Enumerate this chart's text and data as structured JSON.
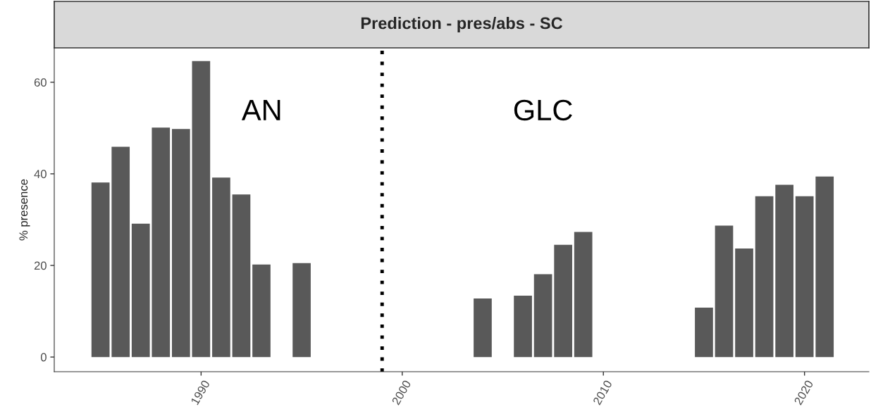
{
  "chart_data": {
    "type": "bar",
    "title": "Prediction - pres/abs - SC",
    "ylabel": "% presence",
    "x": [
      1985,
      1986,
      1987,
      1988,
      1989,
      1990,
      1991,
      1992,
      1993,
      1995,
      2004,
      2006,
      2007,
      2008,
      2009,
      2015,
      2016,
      2017,
      2018,
      2019,
      2020,
      2021
    ],
    "values": [
      38.1,
      45.9,
      29.1,
      50.1,
      49.8,
      64.6,
      39.2,
      35.5,
      20.2,
      20.5,
      12.8,
      13.4,
      18.1,
      24.5,
      27.3,
      10.8,
      28.7,
      23.7,
      35.1,
      37.6,
      35.1,
      39.4
    ],
    "color": "#595959",
    "xlim": [
      1982.7,
      2023.2
    ],
    "xticks": [
      1990,
      2000,
      2010,
      2020
    ],
    "ylim": [
      -3.2,
      67.5
    ],
    "yticks": [
      0,
      20,
      40,
      60
    ],
    "ref_lines": [
      {
        "axis": "x",
        "value": 1999,
        "color": "#000000",
        "line_style": "dotted"
      }
    ],
    "annotations": [
      "AN",
      "GLC"
    ],
    "grid": false,
    "legend": false
  }
}
